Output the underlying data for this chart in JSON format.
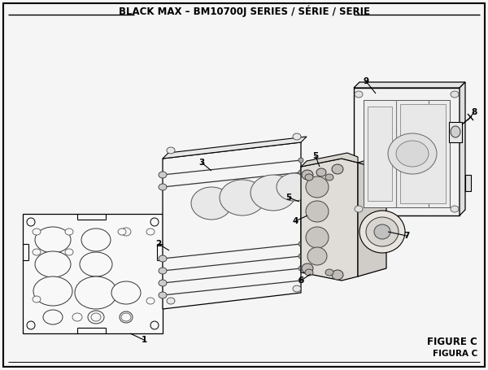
{
  "title": "BLACK MAX – BM10700J SERIES / SÉRIE / SERIE",
  "figure_label": "FIGURE C",
  "figura_label": "FIGURA C",
  "bg_color": "#f5f5f5",
  "border_color": "#000000",
  "line_color": "#000000",
  "title_fontsize": 8.5,
  "label_fontsize": 7.5,
  "figure_label_fontsize": 8.5
}
